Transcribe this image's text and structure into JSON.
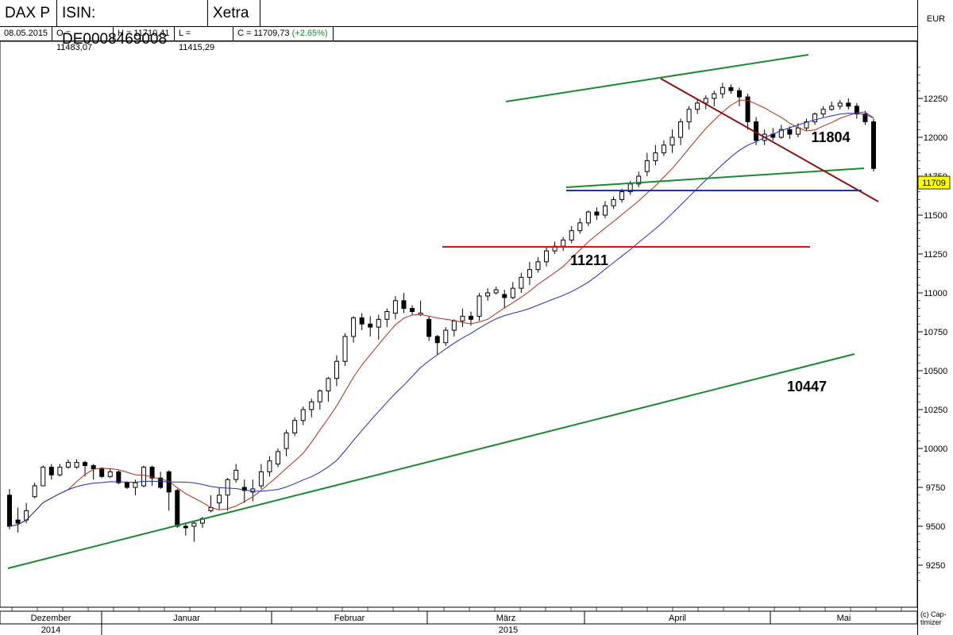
{
  "header": {
    "name": "DAX P",
    "isin": "ISIN: DE0008469008",
    "exchange": "Xetra"
  },
  "ohlc": {
    "date": "08.05.2015",
    "open": "O = 11483,07",
    "high": "H = 11710,41",
    "low": "L = 11415,29",
    "close": "C = 11709,73",
    "change": "(+2.65%)"
  },
  "currency": "EUR",
  "credit": [
    "(c) Cap-",
    "timizer"
  ],
  "colors": {
    "ma_short": "#b03010",
    "ma_long": "#1f2fbf",
    "trend_green": "#1b8a2e",
    "resistance": "#8b1010",
    "support_blue": "#1f2fbf",
    "support_red": "#e01010",
    "price_box": "#ffff00",
    "change": "#1b8a2e"
  },
  "chart_data": {
    "type": "candlestick",
    "y_axis": {
      "ticks": [
        9250,
        9500,
        9750,
        10000,
        10250,
        10500,
        10750,
        11000,
        11250,
        11500,
        11750,
        12000,
        12250
      ],
      "range": [
        9100,
        12500
      ]
    },
    "x_axis": {
      "months": [
        "Dezember",
        "Januar",
        "Februar",
        "März",
        "April",
        "Mai"
      ],
      "years": [
        "2014",
        "2015"
      ]
    },
    "current_price": "11709",
    "annotations": [
      "11804",
      "11211",
      "10447"
    ],
    "candles": [
      [
        9700,
        9500,
        9740,
        9480
      ],
      [
        9540,
        9520,
        9620,
        9460
      ],
      [
        9540,
        9600,
        9650,
        9520
      ],
      [
        9690,
        9760,
        9780,
        9680
      ],
      [
        9760,
        9880,
        9890,
        9760
      ],
      [
        9880,
        9830,
        9900,
        9800
      ],
      [
        9830,
        9880,
        9900,
        9820
      ],
      [
        9880,
        9910,
        9930,
        9870
      ],
      [
        9880,
        9910,
        9930,
        9870
      ],
      [
        9910,
        9890,
        9920,
        9820
      ],
      [
        9890,
        9870,
        9900,
        9800
      ],
      [
        9870,
        9820,
        9880,
        9810
      ],
      [
        9820,
        9850,
        9870,
        9810
      ],
      [
        9850,
        9780,
        9860,
        9770
      ],
      [
        9780,
        9750,
        9790,
        9740
      ],
      [
        9750,
        9780,
        9800,
        9700
      ],
      [
        9760,
        9880,
        9890,
        9750
      ],
      [
        9880,
        9810,
        9890,
        9760
      ],
      [
        9810,
        9750,
        9850,
        9740
      ],
      [
        9850,
        9720,
        9860,
        9600
      ],
      [
        9730,
        9500,
        9740,
        9490
      ],
      [
        9500,
        9490,
        9520,
        9440
      ],
      [
        9500,
        9520,
        9530,
        9400
      ],
      [
        9520,
        9550,
        9560,
        9490
      ],
      [
        9600,
        9620,
        9700,
        9590
      ],
      [
        9650,
        9700,
        9750,
        9610
      ],
      [
        9700,
        9800,
        9810,
        9600
      ],
      [
        9800,
        9860,
        9900,
        9780
      ],
      [
        9750,
        9730,
        9800,
        9650
      ],
      [
        9720,
        9740,
        9800,
        9660
      ],
      [
        9760,
        9850,
        9900,
        9740
      ],
      [
        9850,
        9920,
        9950,
        9820
      ],
      [
        9900,
        9980,
        10000,
        9880
      ],
      [
        10000,
        10100,
        10120,
        9950
      ],
      [
        10100,
        10180,
        10200,
        10080
      ],
      [
        10180,
        10250,
        10270,
        10150
      ],
      [
        10250,
        10300,
        10320,
        10200
      ],
      [
        10300,
        10370,
        10380,
        10250
      ],
      [
        10370,
        10450,
        10460,
        10300
      ],
      [
        10450,
        10560,
        10600,
        10400
      ],
      [
        10560,
        10720,
        10740,
        10530
      ],
      [
        10720,
        10840,
        10850,
        10680
      ],
      [
        10840,
        10800,
        10870,
        10760
      ],
      [
        10800,
        10780,
        10850,
        10720
      ],
      [
        10780,
        10830,
        10860,
        10700
      ],
      [
        10830,
        10880,
        10900,
        10780
      ],
      [
        10870,
        10950,
        10980,
        10830
      ],
      [
        10950,
        10900,
        11000,
        10870
      ],
      [
        10900,
        10880,
        10920,
        10860
      ],
      [
        10860,
        10870,
        10950,
        10850
      ],
      [
        10830,
        10720,
        10850,
        10690
      ],
      [
        10720,
        10680,
        10730,
        10600
      ],
      [
        10680,
        10760,
        10780,
        10660
      ],
      [
        10760,
        10820,
        10830,
        10720
      ],
      [
        10820,
        10850,
        10900,
        10780
      ],
      [
        10850,
        10830,
        10880,
        10790
      ],
      [
        10850,
        10980,
        11000,
        10820
      ],
      [
        10980,
        11000,
        11030,
        10950
      ],
      [
        11000,
        11020,
        11040,
        10990
      ],
      [
        10990,
        10970,
        11020,
        10900
      ],
      [
        10970,
        11030,
        11070,
        10960
      ],
      [
        11030,
        11100,
        11130,
        11000
      ],
      [
        11100,
        11150,
        11200,
        11050
      ],
      [
        11150,
        11200,
        11230,
        11130
      ],
      [
        11200,
        11270,
        11300,
        11170
      ],
      [
        11270,
        11300,
        11330,
        11250
      ],
      [
        11300,
        11340,
        11360,
        11270
      ],
      [
        11340,
        11400,
        11430,
        11320
      ],
      [
        11400,
        11450,
        11480,
        11380
      ],
      [
        11450,
        11520,
        11530,
        11430
      ],
      [
        11520,
        11500,
        11550,
        11470
      ],
      [
        11500,
        11560,
        11590,
        11480
      ],
      [
        11560,
        11600,
        11620,
        11540
      ],
      [
        11600,
        11650,
        11670,
        11580
      ],
      [
        11650,
        11700,
        11720,
        11630
      ],
      [
        11700,
        11750,
        11780,
        11680
      ],
      [
        11780,
        11850,
        11900,
        11750
      ],
      [
        11850,
        11900,
        11950,
        11820
      ],
      [
        11900,
        11950,
        11980,
        11880
      ],
      [
        11950,
        12000,
        12050,
        11900
      ],
      [
        12000,
        12100,
        12120,
        11950
      ],
      [
        12100,
        12180,
        12200,
        12050
      ],
      [
        12180,
        12220,
        12240,
        12150
      ],
      [
        12220,
        12250,
        12270,
        12180
      ],
      [
        12250,
        12280,
        12300,
        12200
      ],
      [
        12280,
        12320,
        12350,
        12250
      ],
      [
        12320,
        12300,
        12340,
        12280
      ],
      [
        12300,
        12260,
        12320,
        12200
      ],
      [
        12260,
        12100,
        12280,
        12050
      ],
      [
        12100,
        11980,
        12130,
        11950
      ],
      [
        11980,
        12020,
        12050,
        11950
      ],
      [
        12020,
        12000,
        12060,
        11980
      ],
      [
        12000,
        12050,
        12080,
        11990
      ],
      [
        12050,
        12020,
        12070,
        11990
      ],
      [
        12020,
        12060,
        12090,
        12000
      ],
      [
        12060,
        12100,
        12120,
        12040
      ],
      [
        12100,
        12150,
        12160,
        12080
      ],
      [
        12150,
        12180,
        12200,
        12130
      ],
      [
        12180,
        12200,
        12230,
        12170
      ],
      [
        12200,
        12220,
        12240,
        12180
      ],
      [
        12220,
        12200,
        12250,
        12180
      ],
      [
        12200,
        12150,
        12220,
        12120
      ],
      [
        12150,
        12100,
        12170,
        12080
      ],
      [
        12100,
        11800,
        12120,
        11780
      ]
    ]
  }
}
